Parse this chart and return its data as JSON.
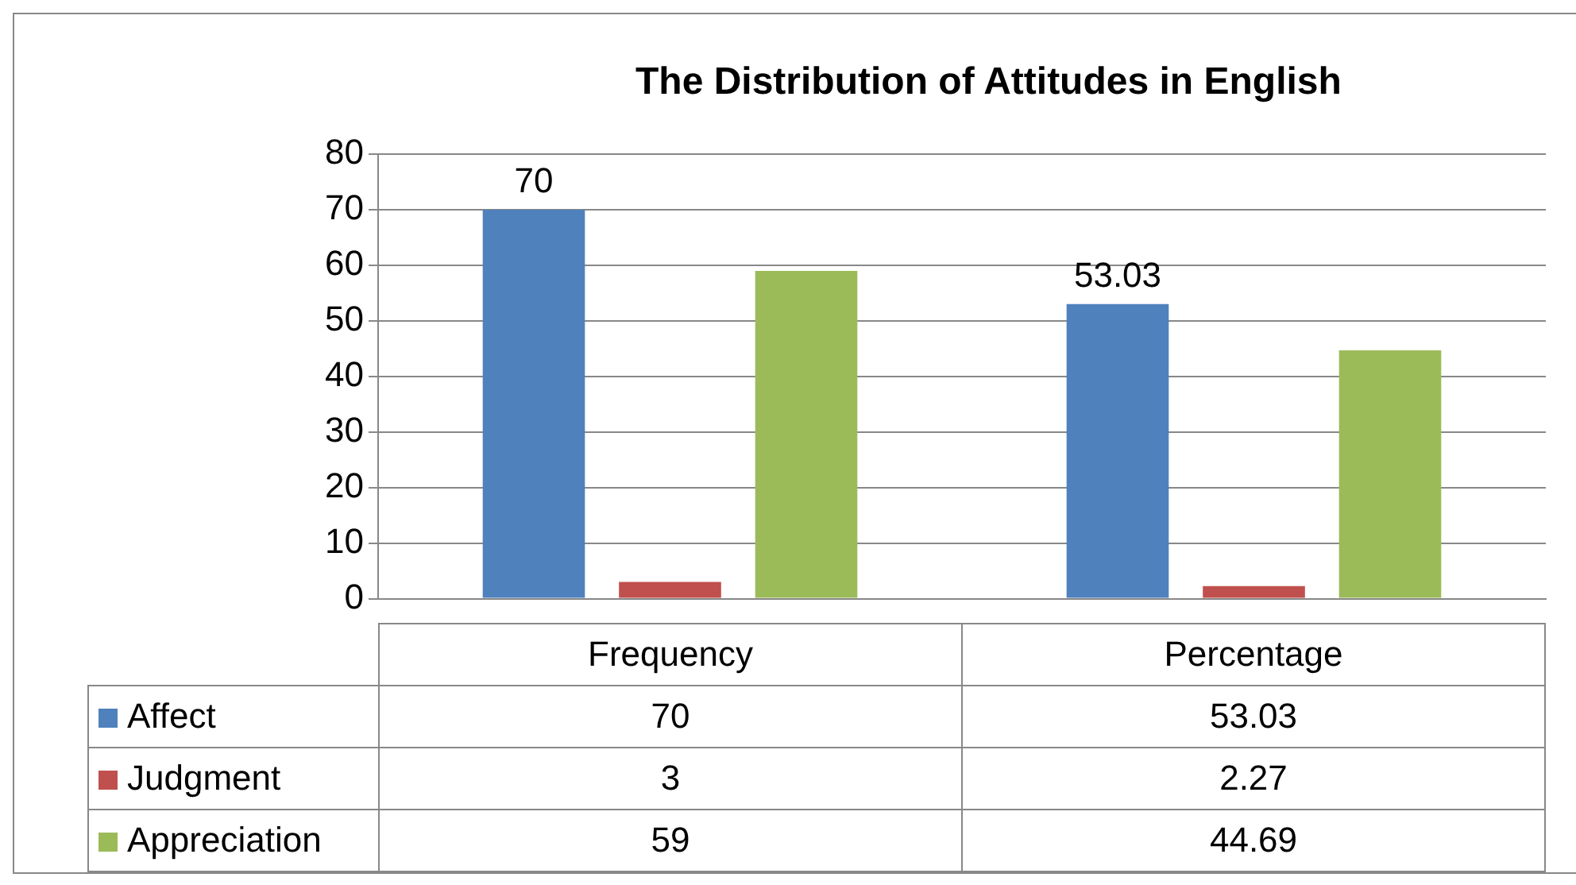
{
  "chart_data": {
    "type": "bar",
    "title": "The Distribution of Attitudes in English",
    "categories": [
      "Frequency",
      "Percentage"
    ],
    "series": [
      {
        "name": "Affect",
        "color": "#4f81bd",
        "values": [
          70,
          53.03
        ]
      },
      {
        "name": "Judgment",
        "color": "#c0504d",
        "values": [
          3,
          2.27
        ]
      },
      {
        "name": "Appreciation",
        "color": "#9bbb59",
        "values": [
          59,
          44.69
        ]
      }
    ],
    "ylim": [
      0,
      80
    ],
    "yticks": [
      0,
      10,
      20,
      30,
      40,
      50,
      60,
      70,
      80
    ],
    "annotations": [
      "70",
      "53.03"
    ],
    "grid": "y",
    "legend": "bottom",
    "data_labels": true
  }
}
